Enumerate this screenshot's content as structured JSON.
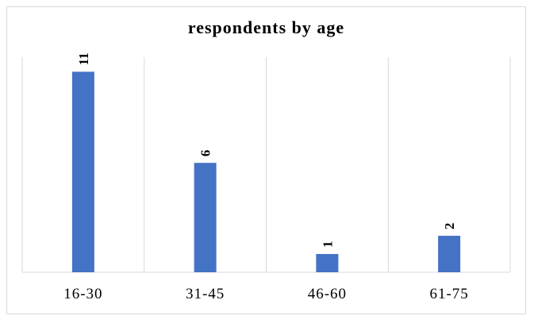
{
  "chart_data": {
    "type": "bar",
    "title": "respondents by age",
    "categories": [
      "16-30",
      "31-45",
      "46-60",
      "61-75"
    ],
    "values": [
      11,
      6,
      1,
      2
    ],
    "ylim": [
      0,
      11.8
    ],
    "grid": "vertical separators",
    "legend": "none",
    "bar_color": "#4472c4",
    "data_labels": "rotated, above bars"
  }
}
